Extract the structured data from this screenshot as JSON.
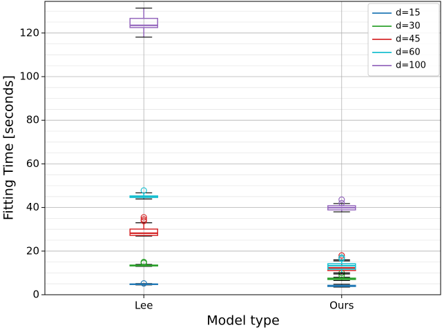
{
  "chart_data": {
    "type": "box",
    "xlabel": "Model type",
    "ylabel": "Fitting Time [seconds]",
    "categories": [
      "Lee",
      "Ours"
    ],
    "ylim": [
      0,
      134.5
    ],
    "yticks": [
      0,
      20,
      40,
      60,
      80,
      100,
      120
    ],
    "minor_yticks": [
      5,
      10,
      15,
      25,
      30,
      35,
      45,
      50,
      55,
      65,
      70,
      75,
      85,
      90,
      95,
      105,
      110,
      115,
      125,
      130
    ],
    "grid": true,
    "legend": "upper right",
    "series": [
      {
        "name": "d=15",
        "color": "#1f77b4",
        "boxes": [
          {
            "min": 4.5,
            "q1": 4.7,
            "median": 4.8,
            "q3": 4.9,
            "max": 5.1,
            "outliers": [
              5.2
            ]
          },
          {
            "min": 3.5,
            "q1": 3.8,
            "median": 4.0,
            "q3": 4.3,
            "max": 4.8,
            "outliers": []
          }
        ]
      },
      {
        "name": "d=30",
        "color": "#2ca02c",
        "boxes": [
          {
            "min": 13.0,
            "q1": 13.2,
            "median": 13.4,
            "q3": 13.6,
            "max": 13.9,
            "outliers": [
              14.6,
              15.0
            ]
          },
          {
            "min": 6.5,
            "q1": 7.0,
            "median": 7.3,
            "q3": 7.6,
            "max": 8.0,
            "outliers": [
              9.0,
              10.0
            ]
          }
        ]
      },
      {
        "name": "d=45",
        "color": "#d62728",
        "boxes": [
          {
            "min": 26.9,
            "q1": 27.2,
            "median": 28.2,
            "q3": 30.1,
            "max": 33.0,
            "outliers": [
              33.8,
              34.5,
              35.5
            ]
          },
          {
            "min": 9.5,
            "q1": 11.1,
            "median": 12.3,
            "q3": 13.3,
            "max": 15.5,
            "outliers": [
              17.0,
              18.0
            ]
          }
        ]
      },
      {
        "name": "d=60",
        "color": "#17becf",
        "boxes": [
          {
            "min": 43.9,
            "q1": 44.6,
            "median": 45.0,
            "q3": 45.3,
            "max": 46.7,
            "outliers": [
              47.8
            ]
          },
          {
            "min": 10.0,
            "q1": 11.7,
            "median": 13.3,
            "q3": 14.2,
            "max": 16.0,
            "outliers": [
              16.5,
              17.0
            ]
          }
        ]
      },
      {
        "name": "d=100",
        "color": "#9467bd",
        "boxes": [
          {
            "min": 118.1,
            "q1": 122.5,
            "median": 123.5,
            "q3": 126.7,
            "max": 131.4,
            "outliers": []
          },
          {
            "min": 38.0,
            "q1": 38.9,
            "median": 39.9,
            "q3": 40.8,
            "max": 41.8,
            "outliers": [
              42.0,
              43.6
            ]
          }
        ]
      }
    ]
  }
}
